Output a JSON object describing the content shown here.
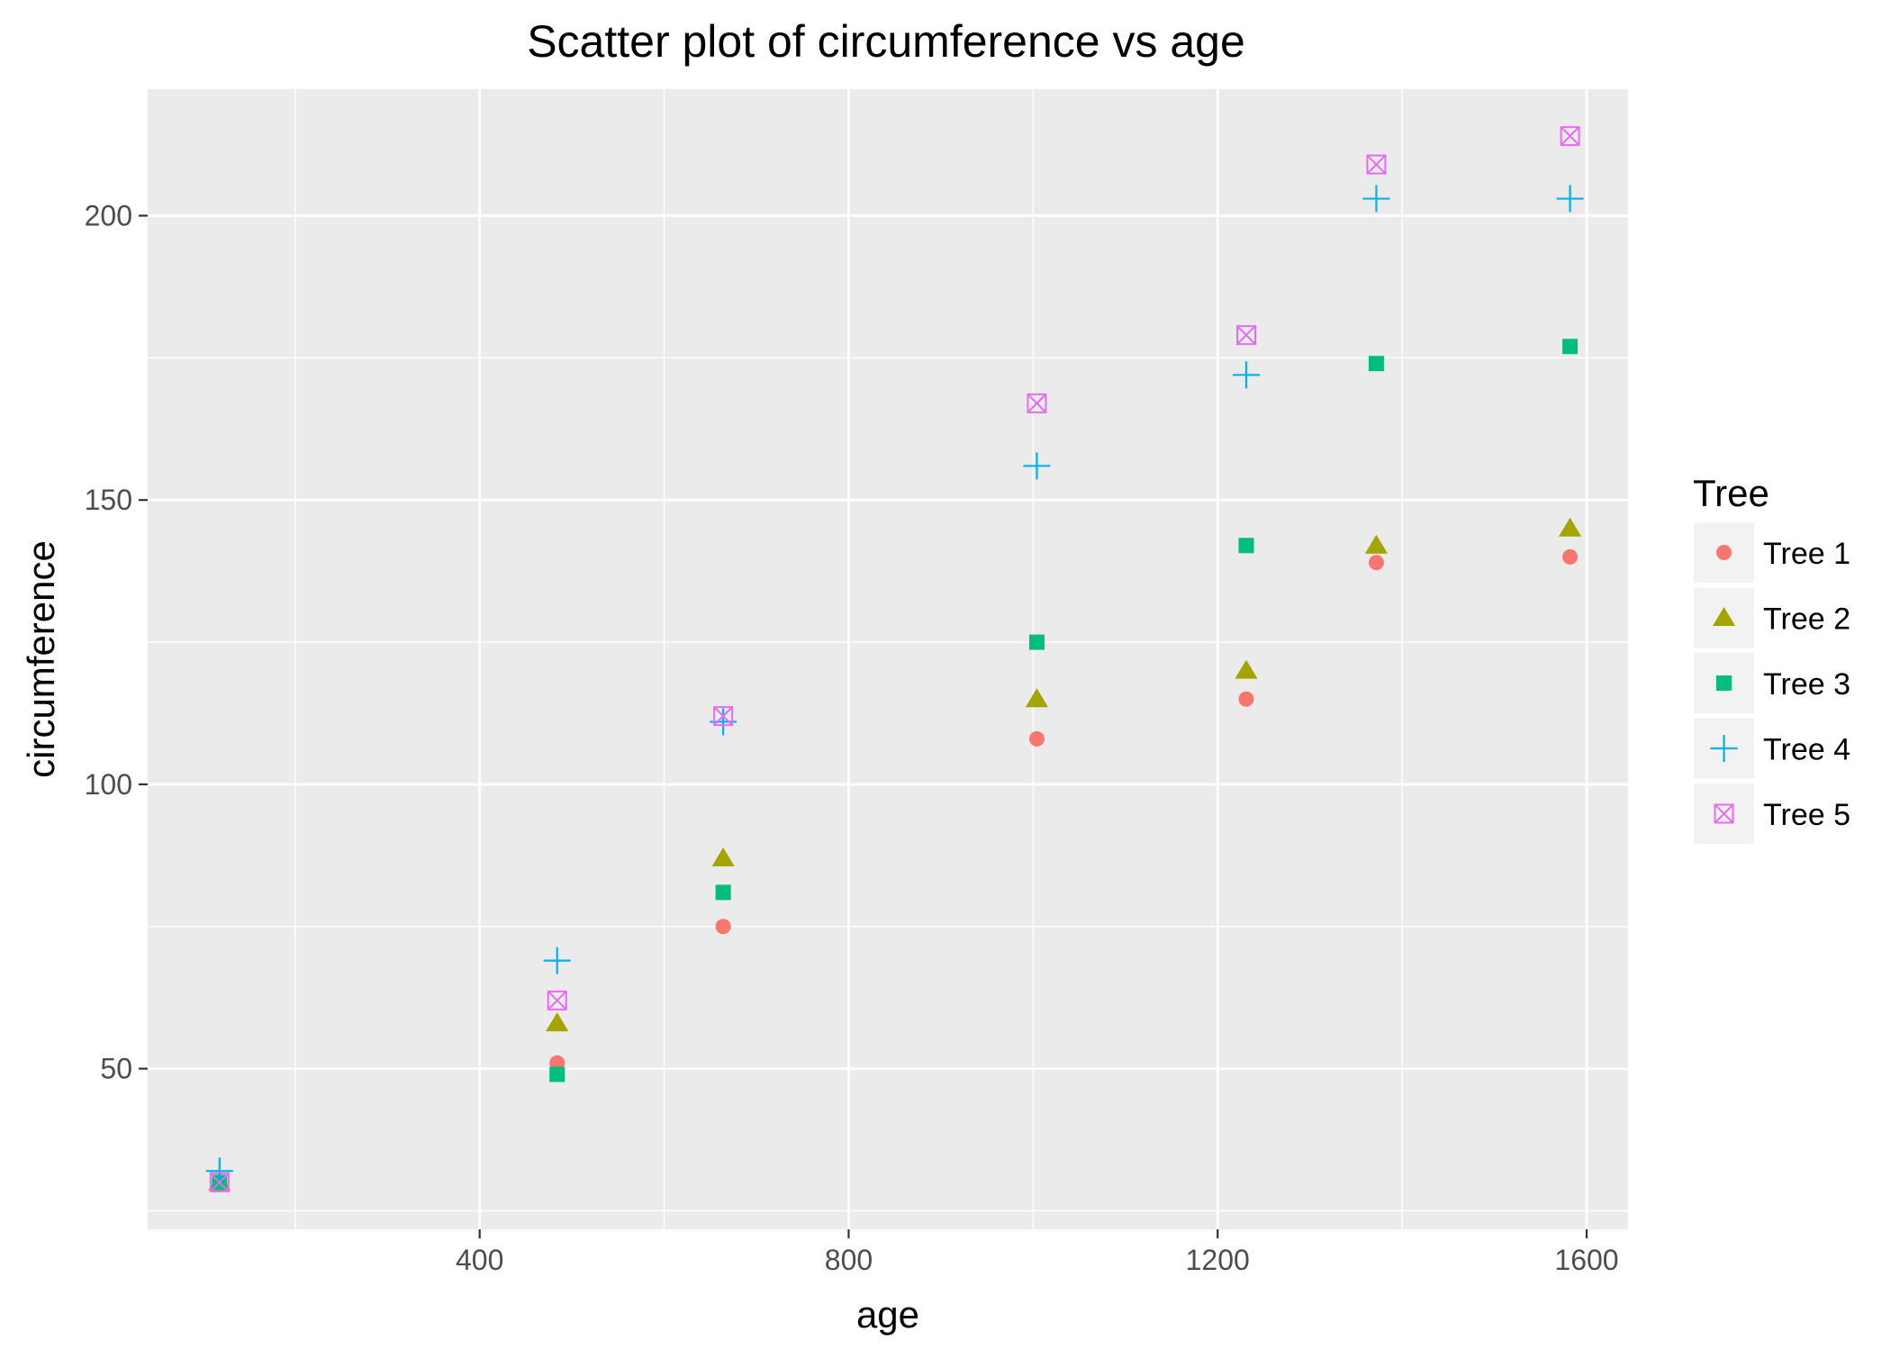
{
  "chart_data": {
    "type": "scatter",
    "title": "Scatter plot of circumference vs age",
    "xlabel": "age",
    "ylabel": "circumference",
    "xlim": [
      40.1,
      1644.9
    ],
    "ylim": [
      21.75,
      222.25
    ],
    "xticks": [
      400,
      800,
      1200,
      1600
    ],
    "yticks": [
      50,
      100,
      150,
      200
    ],
    "grid": true,
    "legend": {
      "title": "Tree",
      "position": "right"
    },
    "series": [
      {
        "name": "Tree 1",
        "shape": "circle",
        "color": "#F8766D",
        "x": [
          118,
          484,
          664,
          1004,
          1231,
          1372,
          1582
        ],
        "y": [
          30,
          51,
          75,
          108,
          115,
          139,
          140
        ]
      },
      {
        "name": "Tree 2",
        "shape": "triangle",
        "color": "#A3A500",
        "x": [
          118,
          484,
          664,
          1004,
          1231,
          1372,
          1582
        ],
        "y": [
          30,
          58,
          87,
          115,
          120,
          142,
          145
        ]
      },
      {
        "name": "Tree 3",
        "shape": "square",
        "color": "#00BF7D",
        "x": [
          118,
          484,
          664,
          1004,
          1231,
          1372,
          1582
        ],
        "y": [
          30,
          49,
          81,
          125,
          142,
          174,
          177
        ]
      },
      {
        "name": "Tree 4",
        "shape": "plus",
        "color": "#00B0F6",
        "x": [
          118,
          484,
          664,
          1004,
          1231,
          1372,
          1582
        ],
        "y": [
          32,
          69,
          111,
          156,
          172,
          203,
          203
        ]
      },
      {
        "name": "Tree 5",
        "shape": "boxx",
        "color": "#E76BF3",
        "x": [
          118,
          484,
          664,
          1004,
          1231,
          1372,
          1582
        ],
        "y": [
          30,
          62,
          112,
          167,
          179,
          209,
          214
        ]
      }
    ]
  }
}
